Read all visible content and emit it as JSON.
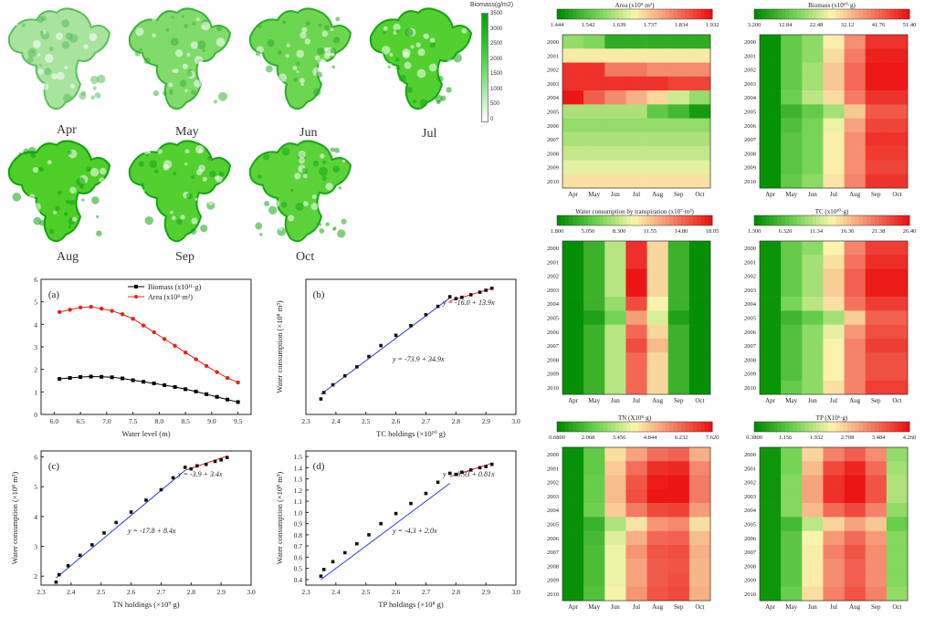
{
  "maps": {
    "months": [
      "Apr",
      "May",
      "Jun",
      "Jul",
      "Aug",
      "Sep",
      "Oct"
    ],
    "legend_title": "Biomass(g/m2)",
    "legend_ticks": [
      "3500",
      "3000",
      "2500",
      "2000",
      "1500",
      "1000",
      "500",
      "0"
    ],
    "greenness": [
      0.25,
      0.55,
      0.7,
      0.9,
      0.95,
      0.9,
      0.85
    ]
  },
  "chart_data": [
    {
      "type": "line",
      "panel": "(a)",
      "xlabel": "Water level (m)",
      "ylabel": "",
      "xlim": [
        5.75,
        9.75
      ],
      "ylim": [
        0,
        6
      ],
      "xticks": [
        "6.0",
        "6.5",
        "7.0",
        "7.5",
        "8.0",
        "8.5",
        "9.0",
        "9.5"
      ],
      "yticks": [
        "0",
        "1",
        "2",
        "3",
        "4",
        "5",
        "6"
      ],
      "series": [
        {
          "name": "Biomass (x10¹¹·g)",
          "color": "#000000",
          "marker": "square",
          "x": [
            6.1,
            6.3,
            6.5,
            6.7,
            6.9,
            7.1,
            7.3,
            7.5,
            7.7,
            7.9,
            8.1,
            8.3,
            8.5,
            8.7,
            8.9,
            9.1,
            9.3,
            9.5
          ],
          "y": [
            1.58,
            1.62,
            1.66,
            1.68,
            1.67,
            1.65,
            1.6,
            1.52,
            1.45,
            1.38,
            1.3,
            1.22,
            1.12,
            1.02,
            0.9,
            0.78,
            0.66,
            0.55
          ]
        },
        {
          "name": "Area (x10⁸·m²)",
          "color": "#e8231a",
          "marker": "circle",
          "x": [
            6.1,
            6.3,
            6.5,
            6.7,
            6.9,
            7.1,
            7.3,
            7.5,
            7.7,
            7.9,
            8.1,
            8.3,
            8.5,
            8.7,
            8.9,
            9.1,
            9.3,
            9.5
          ],
          "y": [
            4.55,
            4.65,
            4.75,
            4.78,
            4.7,
            4.6,
            4.45,
            4.25,
            3.95,
            3.65,
            3.35,
            3.05,
            2.75,
            2.45,
            2.15,
            1.88,
            1.62,
            1.42
          ]
        }
      ]
    },
    {
      "type": "scatter",
      "panel": "(b)",
      "xlabel": "TC holdings (×10¹⁰ g)",
      "ylabel": "Water consumption (×10⁸ m³)",
      "xlim": [
        2.3,
        3.0
      ],
      "ylim": [
        5,
        26
      ],
      "xticks": [
        "2.3",
        "2.4",
        "2.5",
        "2.6",
        "2.7",
        "2.8",
        "2.9",
        "3.0"
      ],
      "yticks": [],
      "x": [
        2.35,
        2.36,
        2.39,
        2.43,
        2.47,
        2.51,
        2.55,
        2.6,
        2.65,
        2.7,
        2.74,
        2.78,
        2.8,
        2.82,
        2.85,
        2.88,
        2.9,
        2.92
      ],
      "y": [
        7.4,
        8.4,
        9.6,
        11.0,
        12.4,
        14.0,
        15.7,
        17.3,
        18.8,
        20.5,
        21.8,
        23.3,
        23.0,
        23.2,
        23.6,
        24.0,
        24.3,
        24.6
      ],
      "fits": [
        {
          "label": "y = -73.9 + 34.9x",
          "color": "#2b3fd6",
          "x": [
            2.35,
            2.78
          ],
          "y": [
            8.12,
            23.12
          ]
        },
        {
          "label": "y = -16.0 + 13.9x",
          "color": "#e8231a",
          "x": [
            2.78,
            2.92
          ],
          "y": [
            22.64,
            24.59
          ]
        }
      ]
    },
    {
      "type": "scatter",
      "panel": "(c)",
      "xlabel": "TN holdings (×10⁹ g)",
      "ylabel": "Water consumption (×10⁸ m³)",
      "xlim": [
        2.3,
        3.0
      ],
      "ylim": [
        1.7,
        6.2
      ],
      "xticks": [
        "2.3",
        "2.4",
        "2.5",
        "2.6",
        "2.7",
        "2.8",
        "2.9",
        "3.0"
      ],
      "yticks": [
        "2",
        "3",
        "4",
        "5",
        "6"
      ],
      "x": [
        2.35,
        2.36,
        2.39,
        2.43,
        2.47,
        2.51,
        2.55,
        2.6,
        2.65,
        2.7,
        2.74,
        2.78,
        2.8,
        2.82,
        2.85,
        2.88,
        2.9,
        2.92
      ],
      "y": [
        1.8,
        2.05,
        2.35,
        2.7,
        3.05,
        3.45,
        3.8,
        4.15,
        4.55,
        4.9,
        5.3,
        5.65,
        5.6,
        5.7,
        5.75,
        5.85,
        5.9,
        5.98
      ],
      "fits": [
        {
          "label": "y = -17.8 + 8.4x",
          "color": "#2b3fd6",
          "x": [
            2.35,
            2.78
          ],
          "y": [
            1.94,
            5.55
          ]
        },
        {
          "label": "y = -3.9 + 3.4x",
          "color": "#e8231a",
          "x": [
            2.78,
            2.92
          ],
          "y": [
            5.55,
            6.03
          ]
        }
      ]
    },
    {
      "type": "scatter",
      "panel": "(d)",
      "xlabel": "TP holdings (×10⁸ g)",
      "ylabel": "Water consumption (×10⁸ m³)",
      "xlim": [
        2.3,
        3.0
      ],
      "ylim": [
        0.35,
        1.55
      ],
      "xticks": [
        "2.3",
        "2.4",
        "2.5",
        "2.6",
        "2.7",
        "2.8",
        "2.9",
        "3.0"
      ],
      "yticks": [
        "0.4",
        "0.5",
        "0.6",
        "0.7",
        "0.8",
        "0.9",
        "1.0",
        "1.1",
        "1.2",
        "1.3",
        "1.4",
        "1.5"
      ],
      "x": [
        2.35,
        2.36,
        2.39,
        2.43,
        2.47,
        2.51,
        2.55,
        2.6,
        2.65,
        2.7,
        2.74,
        2.78,
        2.8,
        2.82,
        2.85,
        2.88,
        2.9,
        2.92
      ],
      "y": [
        0.43,
        0.49,
        0.56,
        0.64,
        0.72,
        0.8,
        0.9,
        0.99,
        1.08,
        1.17,
        1.27,
        1.35,
        1.34,
        1.36,
        1.38,
        1.4,
        1.41,
        1.43
      ],
      "fits": [
        {
          "label": "y = -4.3 + 2.0x",
          "color": "#2b3fd6",
          "x": [
            2.35,
            2.78
          ],
          "y": [
            0.4,
            1.26
          ]
        },
        {
          "label": "y = -0.93 + 0.81x",
          "color": "#e8231a",
          "x": [
            2.78,
            2.92
          ],
          "y": [
            1.32,
            1.44
          ]
        }
      ]
    },
    {
      "type": "heatmap",
      "title": "Area (x10⁹·m²)",
      "colorbar_ticks": [
        "1.444",
        "1.542",
        "1.639",
        "1.737",
        "1.834",
        "1.932"
      ],
      "vmin": 1.444,
      "vmax": 1.932,
      "years": [
        "2000",
        "2001",
        "2002",
        "2003",
        "2004",
        "2005",
        "2006",
        "2007",
        "2008",
        "2009",
        "2010"
      ],
      "months": [
        "Apr",
        "May",
        "Jun",
        "Jul",
        "Aug",
        "Sep",
        "Oct"
      ],
      "values": [
        [
          1.6,
          1.58,
          1.5,
          1.5,
          1.5,
          1.5,
          1.5
        ],
        [
          1.7,
          1.7,
          1.7,
          1.7,
          1.7,
          1.7,
          1.7
        ],
        [
          1.9,
          1.9,
          1.82,
          1.82,
          1.8,
          1.8,
          1.8
        ],
        [
          1.9,
          1.9,
          1.9,
          1.9,
          1.9,
          1.88,
          1.88
        ],
        [
          1.93,
          1.85,
          1.8,
          1.76,
          1.72,
          1.65,
          1.6
        ],
        [
          1.62,
          1.62,
          1.62,
          1.62,
          1.55,
          1.52,
          1.47
        ],
        [
          1.6,
          1.6,
          1.6,
          1.6,
          1.6,
          1.6,
          1.6
        ],
        [
          1.62,
          1.62,
          1.62,
          1.62,
          1.62,
          1.62,
          1.62
        ],
        [
          1.64,
          1.64,
          1.64,
          1.64,
          1.64,
          1.64,
          1.64
        ],
        [
          1.67,
          1.67,
          1.67,
          1.67,
          1.67,
          1.67,
          1.67
        ],
        [
          1.71,
          1.71,
          1.71,
          1.71,
          1.71,
          1.71,
          1.71
        ]
      ]
    },
    {
      "type": "heatmap",
      "title": "Biomass (x10¹⁰·g)",
      "colorbar_ticks": [
        "3.200",
        "12.84",
        "22.48",
        "32.12",
        "41.76",
        "51.40"
      ],
      "vmin": 3.2,
      "vmax": 51.4,
      "years": [
        "2000",
        "2001",
        "2002",
        "2003",
        "2004",
        "2005",
        "2006",
        "2007",
        "2008",
        "2009",
        "2010"
      ],
      "months": [
        "Apr",
        "May",
        "Jun",
        "Jul",
        "Aug",
        "Sep",
        "Oct"
      ],
      "values": [
        [
          4,
          14,
          18,
          28,
          38,
          48,
          48
        ],
        [
          4,
          14,
          18,
          30,
          40,
          50,
          50
        ],
        [
          4,
          14,
          20,
          32,
          42,
          51,
          51
        ],
        [
          4,
          14,
          20,
          32,
          42,
          51,
          51
        ],
        [
          4,
          15,
          22,
          30,
          40,
          48,
          48
        ],
        [
          4,
          10,
          14,
          20,
          32,
          44,
          44
        ],
        [
          4,
          12,
          16,
          26,
          36,
          46,
          46
        ],
        [
          4,
          13,
          16,
          28,
          38,
          48,
          48
        ],
        [
          4,
          13,
          16,
          28,
          38,
          47,
          47
        ],
        [
          4,
          13,
          16,
          28,
          38,
          46,
          46
        ],
        [
          4,
          14,
          18,
          29,
          39,
          48,
          48
        ]
      ]
    },
    {
      "type": "heatmap",
      "title": "Water consumption by transpiration (x10⁷·m³)",
      "colorbar_ticks": [
        "1.800",
        "5.050",
        "8.300",
        "11.55",
        "14.80",
        "18.05"
      ],
      "vmin": 1.8,
      "vmax": 18.05,
      "years": [
        "2000",
        "2001",
        "2002",
        "2003",
        "2004",
        "2005",
        "2006",
        "2007",
        "2008",
        "2009",
        "2010"
      ],
      "months": [
        "Apr",
        "May",
        "Jun",
        "Jul",
        "Aug",
        "Sep",
        "Oct"
      ],
      "values": [
        [
          2,
          4,
          8,
          17,
          11,
          4,
          2
        ],
        [
          2,
          4,
          8,
          17,
          11,
          4,
          2
        ],
        [
          2,
          4,
          8,
          18,
          11,
          4,
          2
        ],
        [
          2,
          4,
          8,
          18,
          11,
          4,
          2
        ],
        [
          2,
          4,
          7,
          16,
          10,
          4,
          2
        ],
        [
          2,
          3,
          6,
          13,
          9,
          3,
          2
        ],
        [
          2,
          4,
          8,
          15,
          11,
          4,
          2
        ],
        [
          2,
          4,
          8,
          16,
          12,
          4,
          2
        ],
        [
          2,
          4,
          8,
          15,
          11,
          4,
          2
        ],
        [
          2,
          4,
          8,
          15,
          11,
          4,
          2
        ],
        [
          2,
          4,
          8,
          15,
          11,
          4,
          2
        ]
      ]
    },
    {
      "type": "heatmap",
      "title": "TC (x10¹⁰·g)",
      "colorbar_ticks": [
        "1.300",
        "6.320",
        "11.34",
        "16.36",
        "21.38",
        "26.40"
      ],
      "vmin": 1.3,
      "vmax": 26.4,
      "years": [
        "2000",
        "2001",
        "2002",
        "2003",
        "2004",
        "2005",
        "2006",
        "2007",
        "2008",
        "2009",
        "2010"
      ],
      "months": [
        "Apr",
        "May",
        "Jun",
        "Jul",
        "Aug",
        "Sep",
        "Oct"
      ],
      "values": [
        [
          2,
          7,
          9,
          14,
          20,
          24,
          24
        ],
        [
          2,
          7,
          10,
          15,
          21,
          25,
          25
        ],
        [
          2,
          7,
          10,
          16,
          22,
          26,
          26
        ],
        [
          2,
          7,
          10,
          16,
          22,
          26,
          26
        ],
        [
          2,
          8,
          11,
          15,
          21,
          24,
          24
        ],
        [
          2,
          5,
          7,
          10,
          16,
          22,
          22
        ],
        [
          2,
          6,
          9,
          13,
          19,
          23,
          23
        ],
        [
          2,
          6,
          9,
          14,
          20,
          24,
          24
        ],
        [
          2,
          6,
          9,
          14,
          20,
          23,
          23
        ],
        [
          2,
          6,
          9,
          14,
          20,
          23,
          23
        ],
        [
          2,
          7,
          9,
          15,
          20,
          24,
          24
        ]
      ]
    },
    {
      "type": "heatmap",
      "title": "TN (X10⁸·g)",
      "colorbar_ticks": [
        "0.6800",
        "2.068",
        "3.456",
        "4.844",
        "6.232",
        "7.620"
      ],
      "vmin": 0.68,
      "vmax": 7.62,
      "years": [
        "2000",
        "2001",
        "2002",
        "2003",
        "2004",
        "2005",
        "2006",
        "2007",
        "2008",
        "2009",
        "2010"
      ],
      "months": [
        "Apr",
        "May",
        "Jun",
        "Jul",
        "Aug",
        "Sep",
        "Oct"
      ],
      "values": [
        [
          0.8,
          2.2,
          4.5,
          5.4,
          6.2,
          6.4,
          5.2
        ],
        [
          0.8,
          2.2,
          4.8,
          6.2,
          7.2,
          7.3,
          5.8
        ],
        [
          0.8,
          2.3,
          5.0,
          6.6,
          7.5,
          7.6,
          6.0
        ],
        [
          0.8,
          2.3,
          5.0,
          6.7,
          7.6,
          7.6,
          6.0
        ],
        [
          0.8,
          2.4,
          4.8,
          6.0,
          6.8,
          6.9,
          5.5
        ],
        [
          0.8,
          1.6,
          3.2,
          4.4,
          5.6,
          5.8,
          4.5
        ],
        [
          0.8,
          1.8,
          3.8,
          5.2,
          6.3,
          6.4,
          5.0
        ],
        [
          0.8,
          1.9,
          4.0,
          5.6,
          6.6,
          6.7,
          5.2
        ],
        [
          0.8,
          1.9,
          4.0,
          5.4,
          6.5,
          6.6,
          5.1
        ],
        [
          0.8,
          1.9,
          4.0,
          5.4,
          6.5,
          6.7,
          5.1
        ],
        [
          0.8,
          2.0,
          4.1,
          5.6,
          6.6,
          6.8,
          5.2
        ]
      ]
    },
    {
      "type": "heatmap",
      "title": "TP (X10⁶·g)",
      "colorbar_ticks": [
        "0.3800",
        "1.156",
        "1.932",
        "2.708",
        "3.484",
        "4.260"
      ],
      "vmin": 0.38,
      "vmax": 4.26,
      "years": [
        "2000",
        "2001",
        "2002",
        "2003",
        "2004",
        "2005",
        "2006",
        "2007",
        "2008",
        "2009",
        "2010"
      ],
      "months": [
        "Apr",
        "May",
        "Jun",
        "Jul",
        "Aug",
        "Sep",
        "Oct"
      ],
      "values": [
        [
          0.5,
          1.4,
          2.6,
          3.3,
          3.6,
          3.2,
          1.6
        ],
        [
          0.5,
          1.4,
          2.8,
          3.8,
          4.1,
          3.5,
          1.7
        ],
        [
          0.5,
          1.5,
          3.0,
          4.0,
          4.25,
          3.7,
          1.8
        ],
        [
          0.5,
          1.5,
          3.0,
          4.0,
          4.26,
          3.7,
          1.8
        ],
        [
          0.5,
          1.5,
          2.8,
          3.5,
          3.8,
          3.3,
          1.6
        ],
        [
          0.5,
          1.0,
          1.9,
          2.6,
          3.0,
          2.7,
          1.3
        ],
        [
          0.5,
          1.2,
          2.3,
          3.1,
          3.5,
          3.1,
          1.5
        ],
        [
          0.5,
          1.2,
          2.4,
          3.3,
          3.7,
          3.2,
          1.5
        ],
        [
          0.5,
          1.2,
          2.4,
          3.2,
          3.6,
          3.2,
          1.5
        ],
        [
          0.5,
          1.2,
          2.4,
          3.2,
          3.6,
          3.2,
          1.5
        ],
        [
          0.5,
          1.3,
          2.5,
          3.3,
          3.7,
          3.3,
          1.6
        ]
      ]
    }
  ]
}
